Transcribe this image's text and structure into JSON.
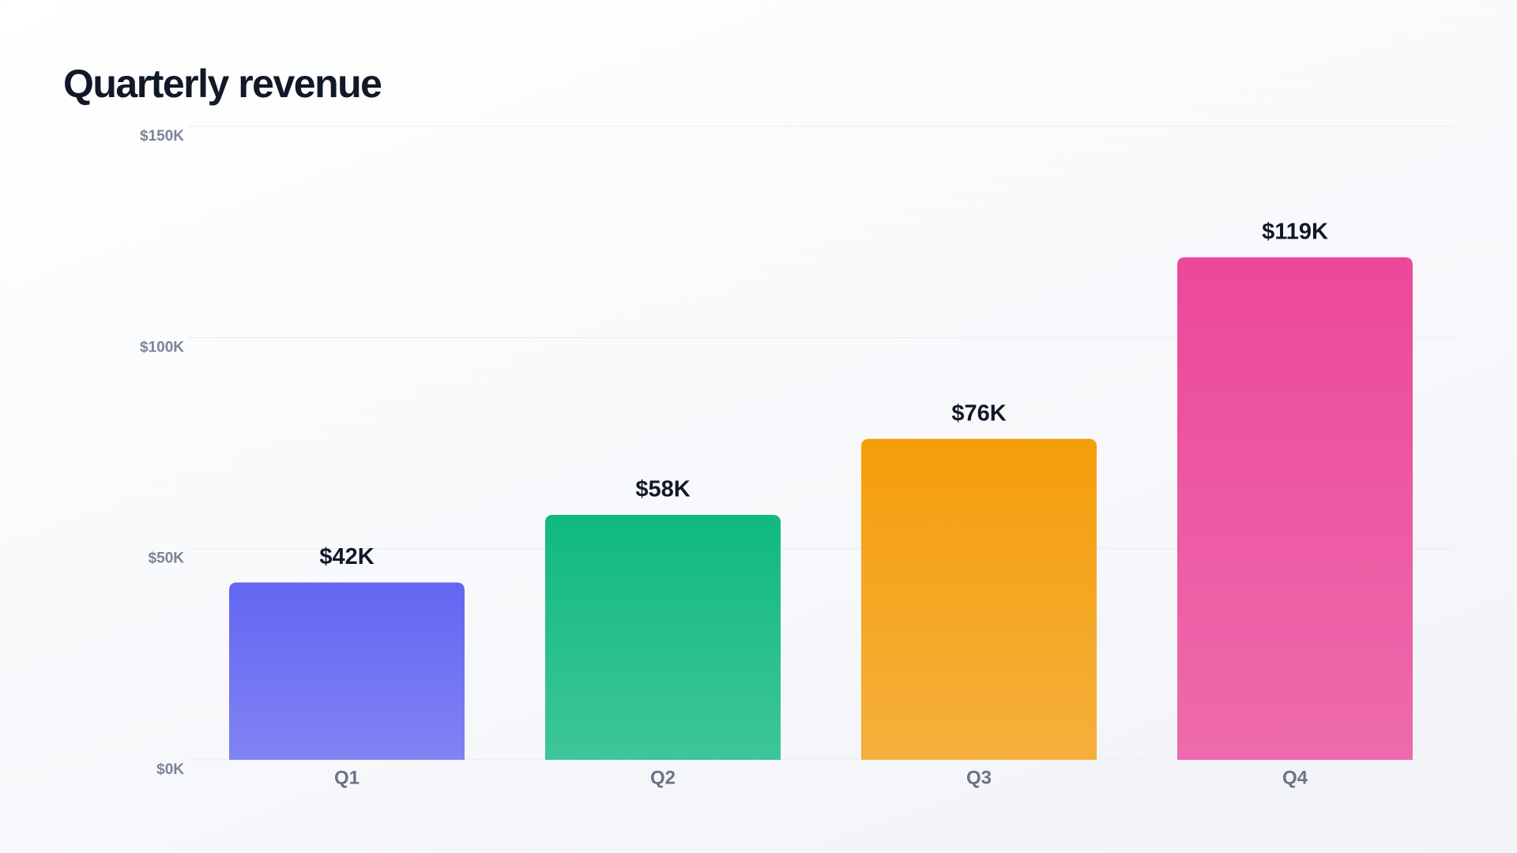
{
  "chart_data": {
    "type": "bar",
    "title": "Quarterly revenue",
    "categories": [
      "Q1",
      "Q2",
      "Q3",
      "Q4"
    ],
    "values": [
      42000,
      58000,
      76000,
      119000
    ],
    "value_labels": [
      "$42K",
      "$58K",
      "$76K",
      "$119K"
    ],
    "colors": [
      "#6366f1",
      "#10b981",
      "#f59e0b",
      "#ec4899"
    ],
    "ylim": [
      0,
      150000
    ],
    "yticks": [
      {
        "value": 0,
        "label": "$0K"
      },
      {
        "value": 50000,
        "label": "$50K"
      },
      {
        "value": 100000,
        "label": "$100K"
      },
      {
        "value": 150000,
        "label": "$150K"
      }
    ],
    "grid": true
  }
}
